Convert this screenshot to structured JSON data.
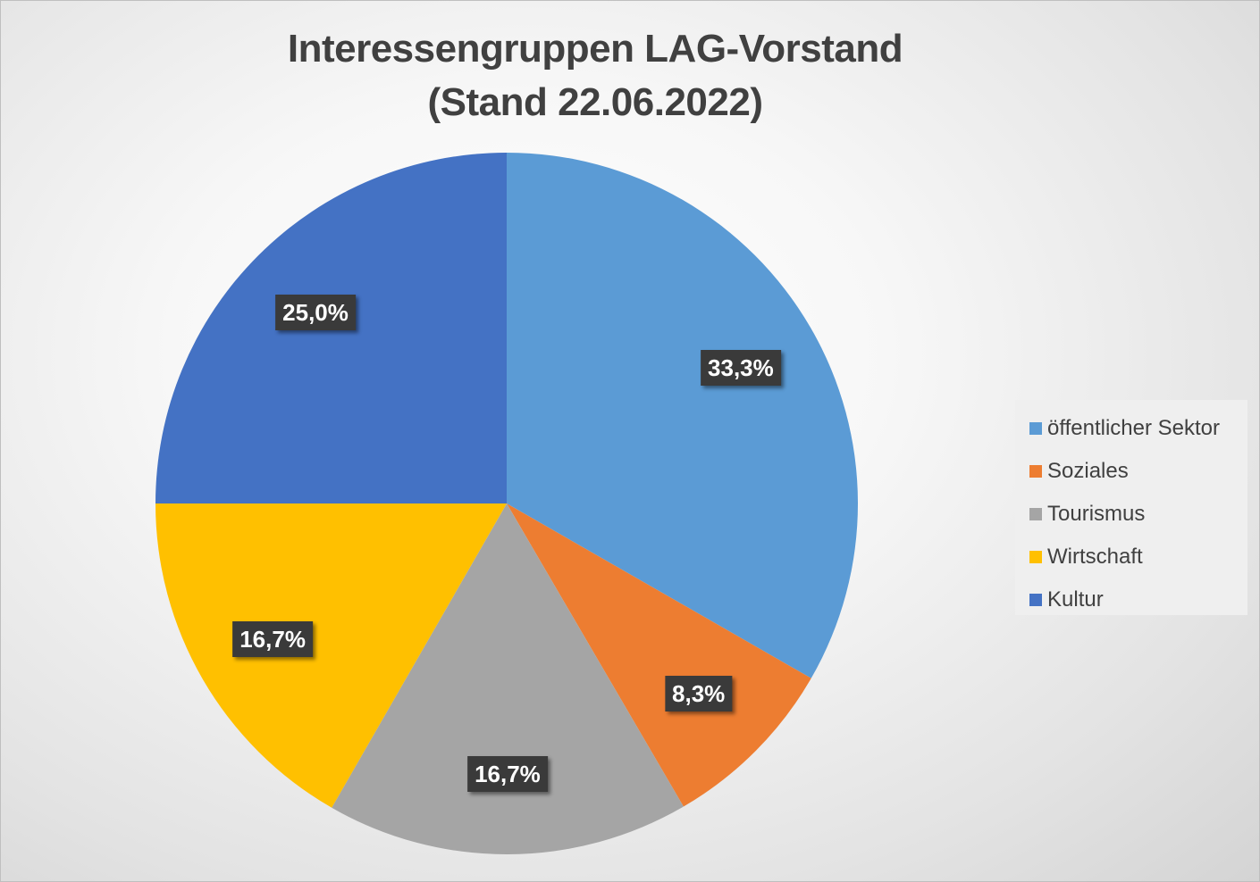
{
  "chart_data": {
    "type": "pie",
    "title": "Interessengruppen LAG-Vorstand\n(Stand 22.06.2022)",
    "start_angle_deg": 0,
    "direction": "clockwise",
    "legend_position": "right",
    "slices": [
      {
        "name": "öffentlicher Sektor",
        "value": 33.3,
        "label": "33,3%",
        "color": "#5b9bd5"
      },
      {
        "name": "Soziales",
        "value": 8.3,
        "label": "8,3%",
        "color": "#ed7d31"
      },
      {
        "name": "Tourismus",
        "value": 16.7,
        "label": "16,7%",
        "color": "#a5a5a5"
      },
      {
        "name": "Wirtschaft",
        "value": 16.7,
        "label": "16,7%",
        "color": "#ffc000"
      },
      {
        "name": "Kultur",
        "value": 25.0,
        "label": "25,0%",
        "color": "#4472c4"
      }
    ]
  }
}
